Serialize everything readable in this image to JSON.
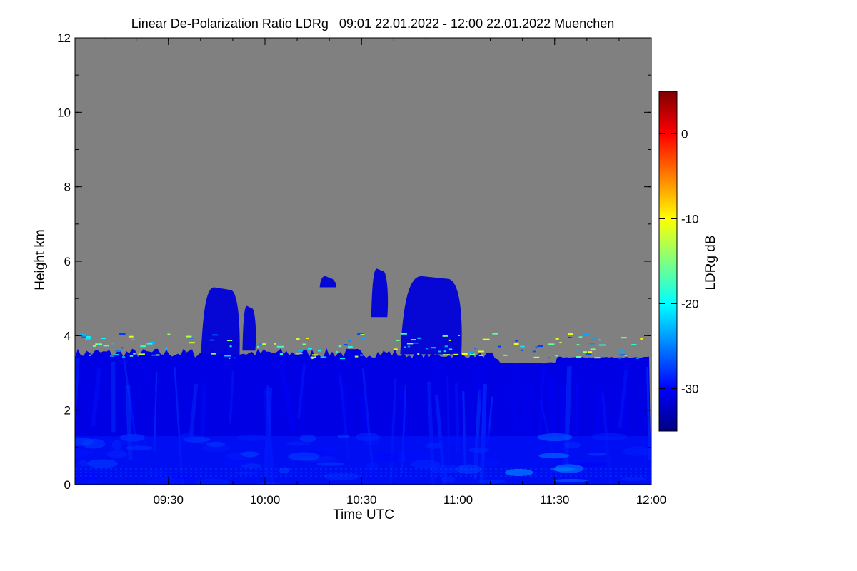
{
  "chart_data": {
    "type": "heatmap",
    "title": "Linear De-Polarization Ratio LDRg   09:01 22.01.2022 - 12:00 22.01.2022 Muenchen",
    "xlabel": "Time UTC",
    "ylabel": "Height km",
    "colorbar_label": "LDRg dB",
    "x_range": [
      "09:01",
      "12:00"
    ],
    "x_ticks": [
      "09:30",
      "10:00",
      "10:30",
      "11:00",
      "11:30",
      "12:00"
    ],
    "ylim": [
      0,
      12
    ],
    "y_ticks": [
      "0",
      "2",
      "4",
      "6",
      "8",
      "10",
      "12"
    ],
    "colorbar_range": [
      -35,
      5
    ],
    "colorbar_ticks": [
      "0",
      "-10",
      "-20",
      "-30"
    ],
    "colorscale": [
      "#00007f",
      "#0000ff",
      "#007fff",
      "#00ffff",
      "#7fff7f",
      "#ffff00",
      "#ff7f00",
      "#ff0000",
      "#7f0000"
    ],
    "no_data_color": "#808080",
    "features": {
      "boundary_layer_top_km": 3.4,
      "boundary_layer_ldr_db": -31,
      "surface_layer_top_km": 1.3,
      "cloud_elements": [
        {
          "start": "09:40",
          "end": "09:52",
          "base_km": 3.2,
          "top_km": 5.3
        },
        {
          "start": "09:53",
          "end": "09:57",
          "base_km": 3.6,
          "top_km": 4.8
        },
        {
          "start": "10:17",
          "end": "10:22",
          "base_km": 5.3,
          "top_km": 5.6
        },
        {
          "start": "10:33",
          "end": "10:38",
          "base_km": 4.5,
          "top_km": 5.8
        },
        {
          "start": "10:42",
          "end": "11:01",
          "base_km": 3.5,
          "top_km": 5.6
        }
      ]
    }
  }
}
